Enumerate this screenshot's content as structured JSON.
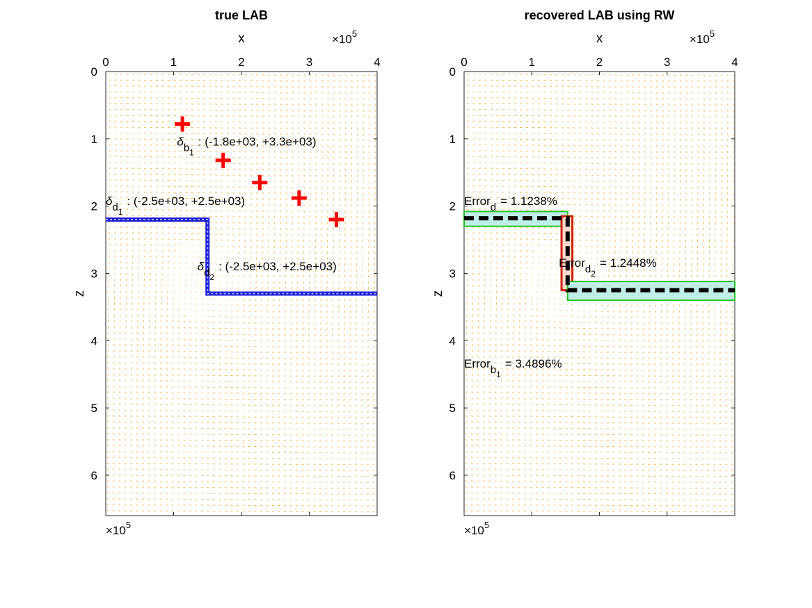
{
  "colors": {
    "quiver": "#f0a21e",
    "marker": "#ff0000",
    "true_boundary": "#1a1ad6",
    "recovered_line": "#000000",
    "band_horizontal": "#22c522",
    "band_horizontal_fill": "#bfeee8",
    "band_vertical": "#cc2200",
    "band_vertical_fill": "#ffd9cc"
  },
  "chart_data": [
    {
      "type": "scatter",
      "title": "true LAB",
      "xlabel": "x",
      "ylabel": "z",
      "x_exponent_label": "×10",
      "x_exponent_power": "5",
      "y_exponent_label": "×10",
      "y_exponent_power": "5",
      "xlim": [
        0,
        4
      ],
      "ylim": [
        0,
        6.6
      ],
      "y_reversed": true,
      "x_axis_location": "top",
      "xticks": [
        "0",
        "1",
        "2",
        "3",
        "4"
      ],
      "yticks": [
        "0",
        "1",
        "2",
        "3",
        "4",
        "5",
        "6"
      ],
      "markers": {
        "shape": "plus",
        "x": [
          1.13,
          1.73,
          2.27,
          2.85,
          3.4
        ],
        "z": [
          0.78,
          1.32,
          1.65,
          1.88,
          2.2
        ]
      },
      "boundary": {
        "x": [
          0,
          1.5,
          1.5,
          4
        ],
        "z": [
          2.2,
          2.2,
          3.3,
          3.3
        ]
      },
      "annotations": [
        {
          "symbol": "δ",
          "subscript": "b",
          "subsub": "1",
          "text": ": (-1.8e+03, +3.3e+03)",
          "x": 1.05,
          "z": 1.05
        },
        {
          "symbol": "δ",
          "subscript": "d",
          "subsub": "1",
          "text": ": (-2.5e+03, +2.5e+03)",
          "x": 0.0,
          "z": 1.93
        },
        {
          "symbol": "δ",
          "subscript": "d",
          "subsub": "2",
          "text": ": (-2.5e+03, +2.5e+03)",
          "x": 1.35,
          "z": 2.9
        }
      ]
    },
    {
      "type": "line",
      "title": "recovered LAB using RW",
      "xlabel": "x",
      "ylabel": "z",
      "x_exponent_label": "×10",
      "x_exponent_power": "5",
      "y_exponent_label": "×10",
      "y_exponent_power": "5",
      "xlim": [
        0,
        4
      ],
      "ylim": [
        0,
        6.6
      ],
      "y_reversed": true,
      "x_axis_location": "top",
      "xticks": [
        "0",
        "1",
        "2",
        "3",
        "4"
      ],
      "yticks": [
        "0",
        "1",
        "2",
        "3",
        "4",
        "5",
        "6"
      ],
      "recovered_boundary": {
        "x": [
          0,
          1.53,
          1.53,
          4
        ],
        "z": [
          2.18,
          2.18,
          3.25,
          3.25
        ]
      },
      "bands": [
        {
          "orient": "h",
          "x": [
            0,
            1.53
          ],
          "z": [
            2.08,
            2.3
          ]
        },
        {
          "orient": "v",
          "x": [
            1.44,
            1.6
          ],
          "z": [
            2.15,
            3.25
          ]
        },
        {
          "orient": "h",
          "x": [
            1.53,
            4
          ],
          "z": [
            3.12,
            3.4
          ]
        }
      ],
      "annotations": [
        {
          "text": "Error",
          "subscript": "d",
          "subsub": "",
          "value": "= 1.1238%",
          "x": 0.0,
          "z": 1.93
        },
        {
          "text": "Error",
          "subscript": "d",
          "subsub": "2",
          "value": "= 1.2448%",
          "x": 1.4,
          "z": 2.85
        },
        {
          "text": "Error",
          "subscript": "b",
          "subsub": "1",
          "value": "= 3.4896%",
          "x": 0.0,
          "z": 4.35
        }
      ]
    }
  ]
}
